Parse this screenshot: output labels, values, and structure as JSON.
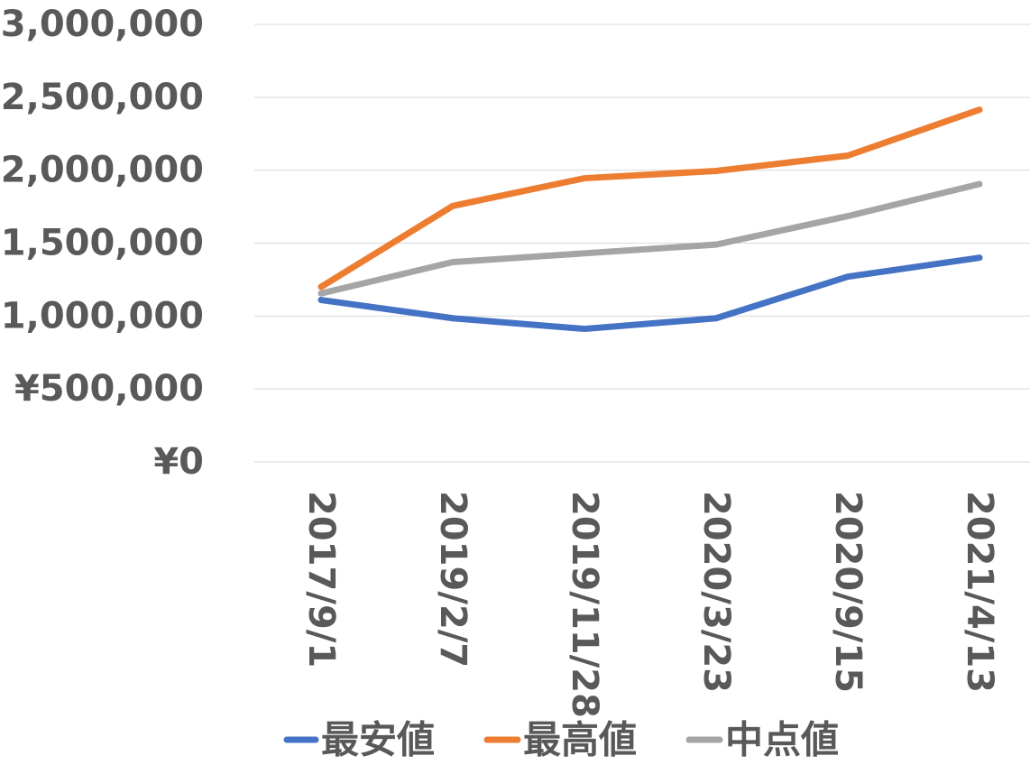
{
  "chart_data": {
    "type": "line",
    "categories": [
      "2017/9/1",
      "2019/2/7",
      "2019/11/28",
      "2020/3/23",
      "2020/9/15",
      "2021/4/13"
    ],
    "series": [
      {
        "name": "最安値",
        "color": "#4472C4",
        "values": [
          1110000,
          985000,
          912000,
          985000,
          1270000,
          1400000
        ]
      },
      {
        "name": "最高値",
        "color": "#ED7D31",
        "values": [
          1200000,
          1755000,
          1945000,
          1995000,
          2100000,
          2415000
        ]
      },
      {
        "name": "中点値",
        "color": "#A5A5A5",
        "values": [
          1155000,
          1370000,
          1430000,
          1490000,
          1685000,
          1905000
        ]
      }
    ],
    "y_ticks": [
      "¥0",
      "¥500,000",
      "¥1,000,000",
      "¥1,500,000",
      "¥2,000,000",
      "¥2,500,000",
      "¥3,000,000"
    ],
    "y_tick_values": [
      0,
      500000,
      1000000,
      1500000,
      2000000,
      2500000,
      3000000
    ],
    "ylim": [
      0,
      3000000
    ],
    "grid": true,
    "legend_position": "bottom",
    "title": "",
    "xlabel": "",
    "ylabel": ""
  }
}
